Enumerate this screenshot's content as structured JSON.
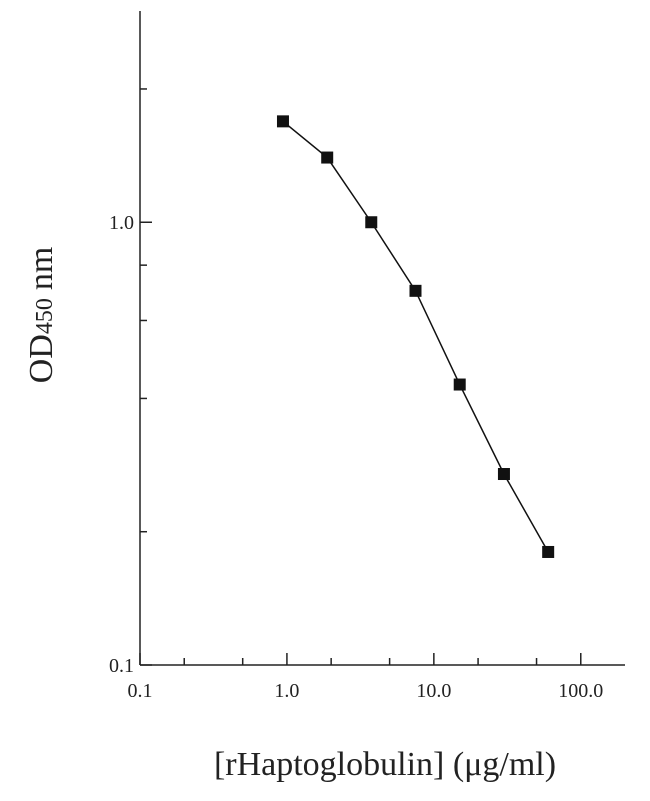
{
  "chart_data": {
    "type": "line",
    "xlabel": "[rHaptoglobulin] (μg/ml)",
    "ylabel": {
      "main": "OD",
      "sub": "450",
      "unit": "nm"
    },
    "xscale": "log",
    "yscale": "log",
    "xlim": [
      0.1,
      200
    ],
    "ylim": [
      0.1,
      3
    ],
    "xticks": [
      {
        "value": 0.1,
        "label": "0.1"
      },
      {
        "value": 1,
        "label": "1.0"
      },
      {
        "value": 10,
        "label": "10.0"
      },
      {
        "value": 100,
        "label": "100.0"
      }
    ],
    "xminorticks": [
      0.2,
      0.5,
      2,
      5,
      20,
      50
    ],
    "yticks": [
      {
        "value": 0.1,
        "label": "0.1"
      },
      {
        "value": 1,
        "label": "1.0"
      }
    ],
    "yminorticks": [
      0.2,
      0.4,
      0.6,
      0.8,
      2
    ],
    "series": [
      {
        "color": "#111111",
        "x": [
          0.94,
          1.88,
          3.75,
          7.5,
          15,
          30,
          60
        ],
        "values": [
          1.69,
          1.4,
          1.0,
          0.7,
          0.43,
          0.27,
          0.18
        ]
      }
    ]
  }
}
